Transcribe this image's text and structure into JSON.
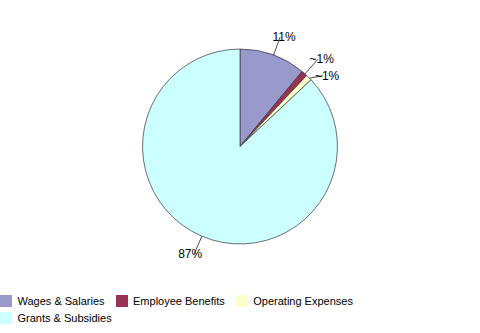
{
  "chart_data": {
    "type": "pie",
    "categories": [
      "Wages & Salaries",
      "Employee Benefits",
      "Operating Expenses",
      "Grants & Subsidies"
    ],
    "values": [
      11,
      1,
      1,
      87
    ],
    "value_labels": [
      "11%",
      "~1%",
      "~1%",
      "87%"
    ],
    "colors": [
      "#9999cc",
      "#993355",
      "#ffffcc",
      "#ccffff"
    ],
    "data_labels": true,
    "legend": "bottom"
  }
}
